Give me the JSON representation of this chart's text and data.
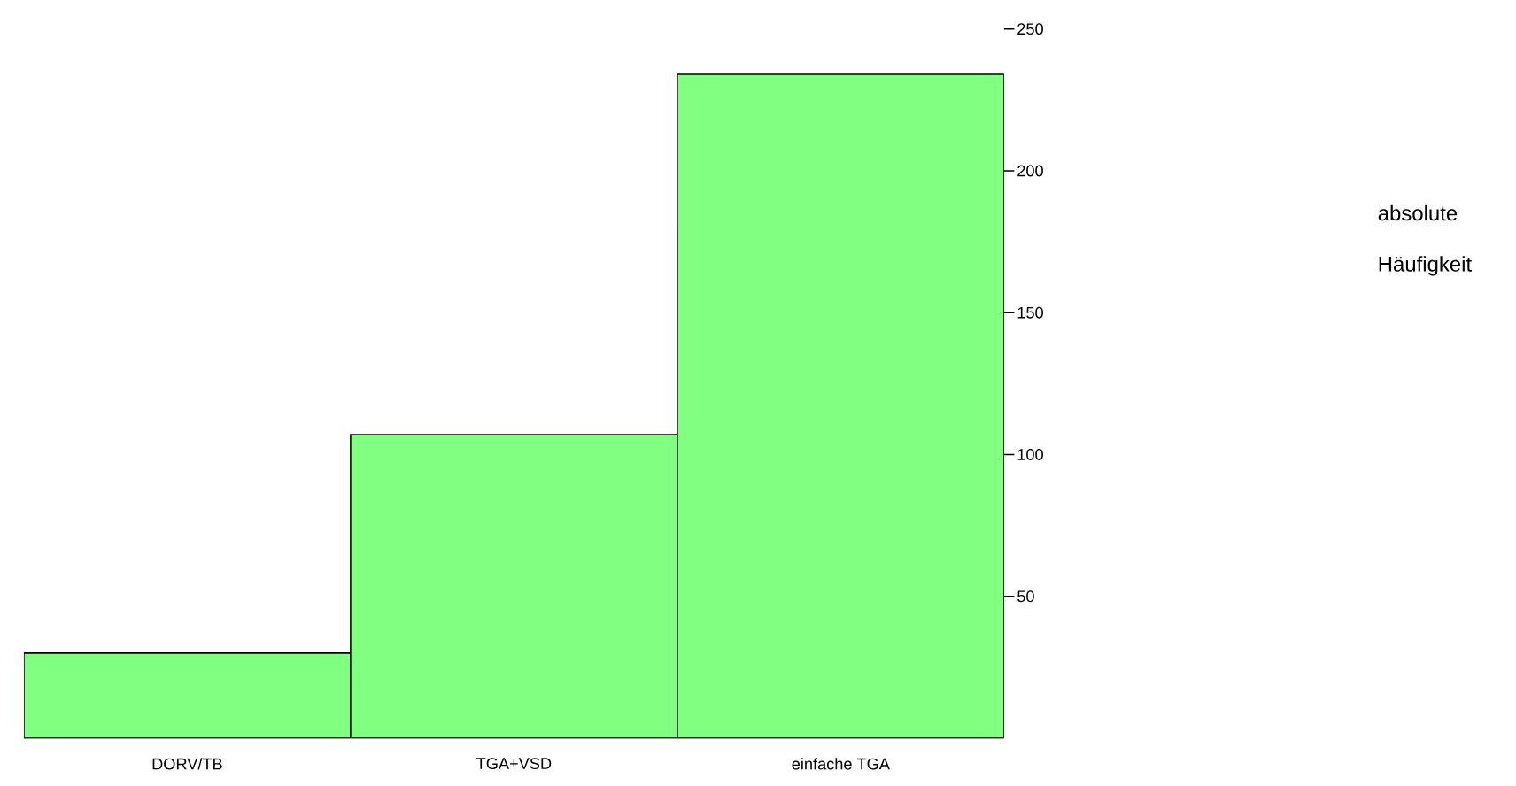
{
  "chart_data": {
    "type": "bar",
    "categories": [
      "DORV/TB",
      "TGA+VSD",
      "einfache TGA"
    ],
    "values": [
      30,
      107,
      234
    ],
    "color": "#80ff80",
    "ylabel": "absolute Häufigkeit",
    "ylim": [
      0,
      250
    ],
    "yticks": [
      50,
      100,
      150,
      200,
      250
    ],
    "grid": false
  }
}
